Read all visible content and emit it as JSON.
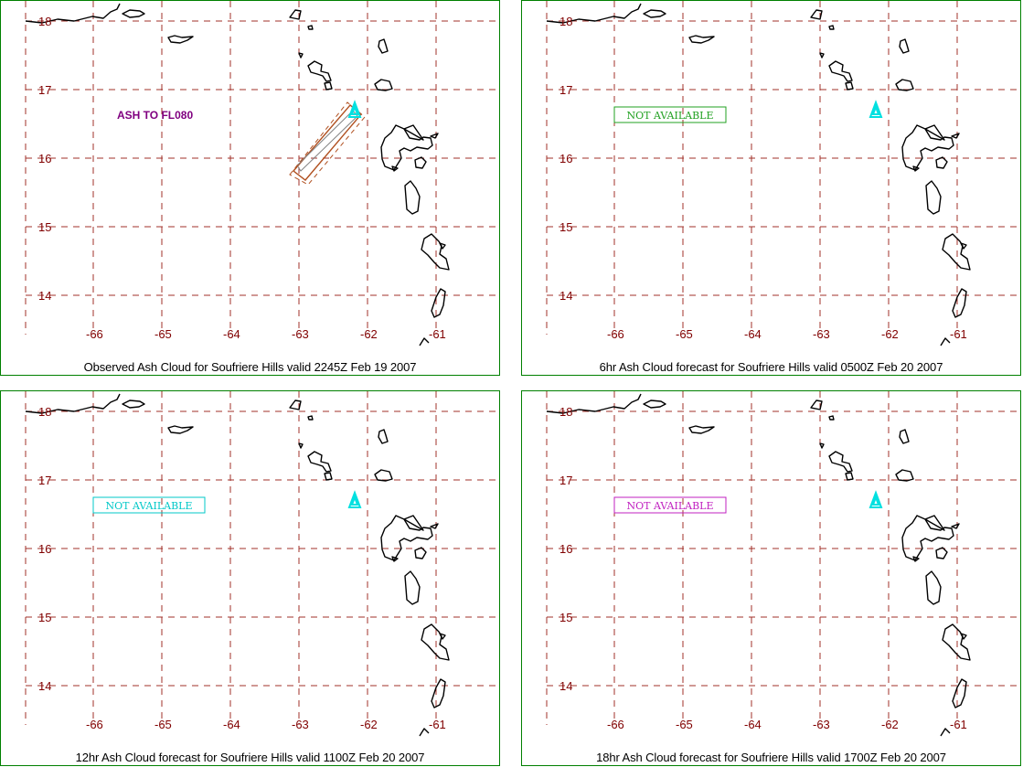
{
  "map": {
    "lon_labels": [
      "-66",
      "-65",
      "-64",
      "-63",
      "-62",
      "-61"
    ],
    "lat_labels": [
      "18",
      "17",
      "16",
      "15",
      "14"
    ],
    "grid_line_color": "#a0302a",
    "tick_label_color": "#800000",
    "coastline_color": "#000000",
    "panel_border_color": "#008000",
    "volcano_icon": "volcano-triangle-icon",
    "volcano_color": "#00e0e0"
  },
  "panels": [
    {
      "caption": "Observed Ash Cloud for Soufriere  Hills valid 2245Z Feb 19 2007",
      "note": "ASH TO FL080",
      "note_color": "#800080",
      "boxed_note": false,
      "has_ash_polygon": true,
      "ash_outer_color": "#b05020",
      "ash_inner_color": "#808080"
    },
    {
      "caption": "6hr Ash Cloud forecast for Soufriere  Hills valid 0500Z Feb 20 2007",
      "note": "NOT AVAILABLE",
      "note_color": "#20a020",
      "boxed_note": true,
      "has_ash_polygon": false
    },
    {
      "caption": "12hr Ash Cloud forecast for Soufriere  Hills valid 1100Z Feb 20 2007",
      "note": "NOT AVAILABLE",
      "note_color": "#00c8c8",
      "boxed_note": true,
      "has_ash_polygon": false
    },
    {
      "caption": "18hr Ash Cloud forecast for Soufriere  Hills valid 1700Z Feb 20 2007",
      "note": "NOT AVAILABLE",
      "note_color": "#c020c0",
      "boxed_note": true,
      "has_ash_polygon": false
    }
  ]
}
